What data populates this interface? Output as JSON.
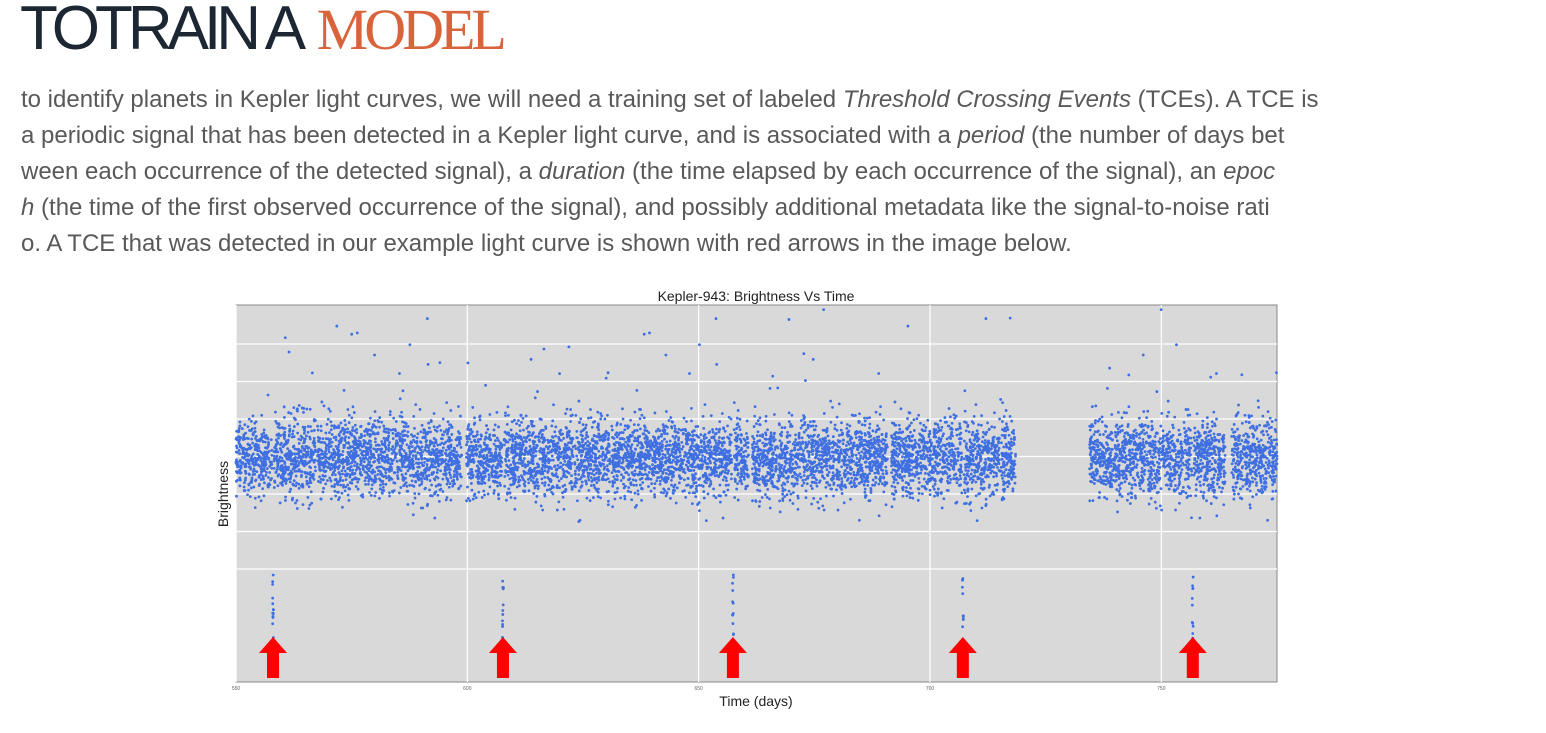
{
  "slide": {
    "title_part1": "TOTRAIN A",
    "title_part2": "MODEL",
    "title_color_dark": "#1d2733",
    "title_color_accent": "#d9633a",
    "body_lines": [
      [
        {
          "t": "to identify planets in Kepler light curves, we will need a training set of labeled "
        },
        {
          "t": "Threshold Crossing Events",
          "i": true
        },
        {
          "t": " (TCEs). A TCE is"
        }
      ],
      [
        {
          "t": "a periodic signal that has been detected in a Kepler light curve, and is associated with a "
        },
        {
          "t": "period",
          "i": true
        },
        {
          "t": " (the number of days bet"
        }
      ],
      [
        {
          "t": "ween each occurrence of the detected signal), a "
        },
        {
          "t": "duration",
          "i": true
        },
        {
          "t": " (the time elapsed by each occurrence of the signal), an "
        },
        {
          "t": "epoc",
          "i": true
        }
      ],
      [
        {
          "t": "h",
          "i": true
        },
        {
          "t": " (the time of the first observed occurrence of the signal), and possibly additional metadata like the signal-to-noise rati"
        }
      ],
      [
        {
          "t": "o. A TCE that was detected in our example light curve is shown with red arrows in the image below."
        }
      ]
    ]
  },
  "chart_data": {
    "type": "scatter",
    "title": "Kepler-943: Brightness Vs Time",
    "xlabel": "Time (days)",
    "ylabel": "Brightness",
    "xlim": [
      550,
      775
    ],
    "x_ticks": [
      550,
      600,
      650,
      700,
      750
    ],
    "x_tick_labels": [
      "550",
      "600",
      "650",
      "700",
      "750"
    ],
    "grid": true,
    "background_color": "#d9d9d9",
    "point_color": "#3f6fe0",
    "arrow_color": "#ff0000",
    "relative_scale": {
      "baseline": 1.0,
      "noise_sigma": 0.14,
      "outlier_high": 1.45,
      "transit_depth": 0.85
    },
    "observation_segments": [
      [
        550,
        567.2
      ],
      [
        567.6,
        598.8
      ],
      [
        599.8,
        630.8
      ],
      [
        631.2,
        660.8
      ],
      [
        661.6,
        690.8
      ],
      [
        691.6,
        718.5
      ],
      [
        734.5,
        763.8
      ],
      [
        765.2,
        775
      ]
    ],
    "transits": {
      "epoch": 558.0,
      "period": 49.7,
      "times": [
        558.0,
        607.7,
        657.4,
        707.1,
        756.8
      ],
      "duration_days": 0.45,
      "marker": "red-arrow"
    }
  }
}
